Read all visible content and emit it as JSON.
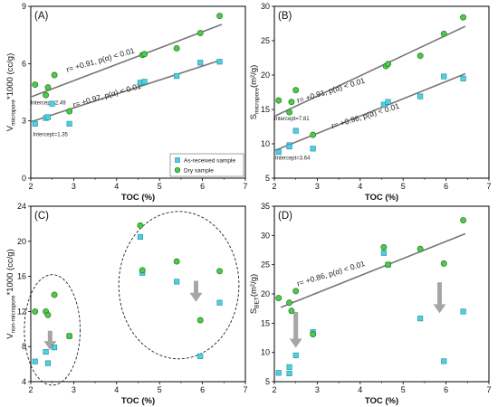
{
  "colors": {
    "as_received": "#4fd0e0",
    "dry": "#4ec94a",
    "fit_line": "#777777",
    "arrow": "#a6a6a6",
    "ellipse": "#222222",
    "frame": "#000000"
  },
  "legend": {
    "as_received": "As-received sample",
    "dry": "Dry sample"
  },
  "chart_data": [
    {
      "panel_label": "(A)",
      "type": "scatter",
      "xlabel": "TOC (%)",
      "ylabel_main": "V",
      "ylabel_sub": "micropore",
      "ylabel_tail": "*1000 (cc/g)",
      "xlim": [
        2,
        7
      ],
      "ylim": [
        0,
        9
      ],
      "xticks": [
        "2",
        "3",
        "4",
        "5",
        "6",
        "7"
      ],
      "yticks": [
        "0",
        "3",
        "6",
        "9"
      ],
      "legend_position": "bottom-right",
      "series": [
        {
          "name": "As-received sample",
          "x": [
            2.1,
            2.35,
            2.4,
            2.5,
            2.9,
            4.55,
            4.65,
            5.4,
            5.95,
            6.4
          ],
          "y": [
            2.85,
            3.15,
            3.2,
            3.9,
            2.85,
            5.0,
            5.05,
            5.35,
            6.05,
            6.1
          ]
        },
        {
          "name": "Dry sample",
          "x": [
            2.1,
            2.35,
            2.4,
            2.55,
            2.9,
            4.6,
            4.65,
            5.4,
            5.95,
            6.4
          ],
          "y": [
            4.9,
            4.35,
            4.75,
            5.4,
            3.5,
            6.45,
            6.5,
            6.8,
            7.6,
            8.5
          ]
        }
      ],
      "fit_lines": [
        {
          "x": [
            2.0,
            6.45
          ],
          "y": [
            2.95,
            6.2
          ]
        },
        {
          "x": [
            2.0,
            6.45
          ],
          "y": [
            4.25,
            8.05
          ]
        }
      ],
      "annotations": [
        {
          "text": "r= +0.91, p(α) < 0.01",
          "x": 2.85,
          "y": 5.55,
          "angle": -16
        },
        {
          "text": "r= +0.97, p(α) < 0.01",
          "x": 3.0,
          "y": 3.7,
          "angle": -16
        },
        {
          "text": "Intercept=2.49",
          "x": 2.0,
          "y": 3.85,
          "angle": 0
        },
        {
          "text": "Intercept=1.35",
          "x": 2.05,
          "y": 2.2,
          "angle": 0
        }
      ]
    },
    {
      "panel_label": "(B)",
      "type": "scatter",
      "xlabel": "TOC (%)",
      "ylabel_main": "S",
      "ylabel_sub": "micropore",
      "ylabel_tail": "(m²/g)",
      "xlim": [
        2,
        7
      ],
      "ylim": [
        5,
        30
      ],
      "xticks": [
        "2",
        "3",
        "4",
        "5",
        "6",
        "7"
      ],
      "yticks": [
        "5",
        "10",
        "15",
        "20",
        "25",
        "30"
      ],
      "series": [
        {
          "name": "As-received sample",
          "x": [
            2.1,
            2.35,
            2.35,
            2.5,
            2.9,
            4.55,
            4.65,
            5.4,
            5.95,
            6.4
          ],
          "y": [
            8.8,
            9.8,
            9.6,
            11.9,
            9.3,
            15.7,
            16.1,
            16.9,
            19.8,
            19.5
          ]
        },
        {
          "name": "Dry sample",
          "x": [
            2.1,
            2.35,
            2.4,
            2.5,
            2.9,
            4.6,
            4.65,
            5.4,
            5.95,
            6.4
          ],
          "y": [
            16.3,
            14.6,
            16.1,
            17.8,
            11.3,
            21.3,
            21.6,
            22.8,
            26.0,
            28.4
          ]
        }
      ],
      "fit_lines": [
        {
          "x": [
            2.0,
            6.45
          ],
          "y": [
            9.0,
            20.2
          ]
        },
        {
          "x": [
            2.0,
            6.45
          ],
          "y": [
            14.0,
            27.1
          ]
        }
      ],
      "annotations": [
        {
          "text": "r= +0.91, p(α) < 0.01",
          "x": 2.55,
          "y": 15.9,
          "angle": -17
        },
        {
          "text": "r= +0.96, p(α) < 0.01",
          "x": 3.35,
          "y": 12.2,
          "angle": -17
        },
        {
          "text": "Intercept=7.81",
          "x": 2.0,
          "y": 13.4,
          "angle": 0
        },
        {
          "text": "Intercept=3.64",
          "x": 2.02,
          "y": 7.7,
          "angle": 0
        }
      ]
    },
    {
      "panel_label": "(C)",
      "type": "scatter",
      "xlabel": "TOC (%)",
      "ylabel_main": "V",
      "ylabel_sub": "non-micropore",
      "ylabel_tail": "*1000 (cc/g)",
      "xlim": [
        2,
        7
      ],
      "ylim": [
        4,
        24
      ],
      "xticks": [
        "2",
        "3",
        "4",
        "5",
        "6",
        "7"
      ],
      "yticks": [
        "4",
        "8",
        "12",
        "16",
        "20",
        "24"
      ],
      "series": [
        {
          "name": "As-received sample",
          "x": [
            2.1,
            2.35,
            2.4,
            2.55,
            2.9,
            4.55,
            4.6,
            5.4,
            5.95,
            6.4
          ],
          "y": [
            6.3,
            7.4,
            6.1,
            7.9,
            9.2,
            20.5,
            16.4,
            15.4,
            6.9,
            13.0
          ]
        },
        {
          "name": "Dry sample",
          "x": [
            2.1,
            2.35,
            2.4,
            2.55,
            2.9,
            4.55,
            4.6,
            5.4,
            5.95,
            6.4
          ],
          "y": [
            12.0,
            12.0,
            11.6,
            13.9,
            9.2,
            21.8,
            16.7,
            17.7,
            11.0,
            16.6
          ]
        }
      ],
      "ellipses": [
        {
          "cx": 2.5,
          "cy": 9.9,
          "rx": 0.65,
          "ry": 6.3,
          "angle": 0
        },
        {
          "cx": 5.45,
          "cy": 15.0,
          "rx": 1.4,
          "ry": 8.4,
          "angle": 0
        }
      ],
      "arrows": [
        {
          "x": 2.45,
          "y_from": 9.8,
          "y_to": 7.6
        },
        {
          "x": 5.85,
          "y_from": 15.5,
          "y_to": 13.1
        }
      ]
    },
    {
      "panel_label": "(D)",
      "type": "scatter",
      "xlabel": "TOC (%)",
      "ylabel_main": "S",
      "ylabel_sub": "BET",
      "ylabel_tail": "(m²/g)",
      "xlim": [
        2,
        7
      ],
      "ylim": [
        5,
        35
      ],
      "xticks": [
        "2",
        "3",
        "4",
        "5",
        "6",
        "7"
      ],
      "yticks": [
        "5",
        "10",
        "15",
        "20",
        "25",
        "30",
        "35"
      ],
      "series": [
        {
          "name": "As-received sample",
          "x": [
            2.1,
            2.35,
            2.35,
            2.5,
            2.9,
            4.55,
            4.65,
            5.4,
            5.95,
            6.4
          ],
          "y": [
            6.5,
            6.4,
            7.5,
            9.5,
            13.5,
            27.0,
            25.0,
            15.8,
            8.5,
            17.0
          ]
        },
        {
          "name": "Dry sample",
          "x": [
            2.1,
            2.35,
            2.4,
            2.5,
            2.9,
            4.55,
            4.65,
            5.4,
            5.95,
            6.4
          ],
          "y": [
            19.3,
            18.5,
            17.1,
            20.5,
            13.1,
            28.0,
            25.0,
            27.7,
            25.2,
            32.6
          ]
        }
      ],
      "fit_lines": [
        {
          "x": [
            2.15,
            6.45
          ],
          "y": [
            17.7,
            30.3
          ]
        }
      ],
      "annotations": [
        {
          "text": "r= +0.86, p(α) < 0.01",
          "x": 2.55,
          "y": 21.3,
          "angle": -17
        }
      ],
      "arrows": [
        {
          "x": 2.5,
          "y_from": 16.9,
          "y_to": 10.8
        },
        {
          "x": 5.85,
          "y_from": 22.0,
          "y_to": 16.7
        }
      ]
    }
  ]
}
